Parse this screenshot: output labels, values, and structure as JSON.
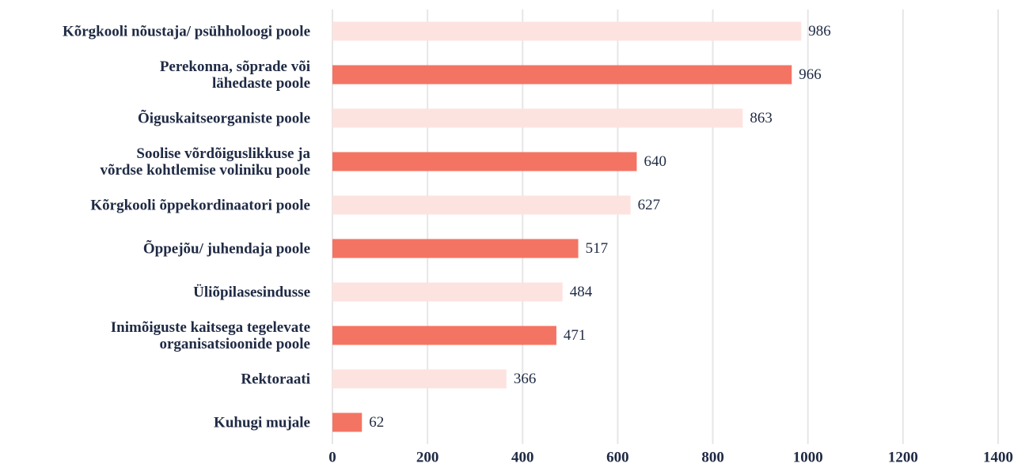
{
  "chart_data": {
    "type": "hbar",
    "categories": [
      "Kõrgkooli nõustaja/ psühholoogi poole",
      "Perekonna, sõprade või\nlähedaste poole",
      "Õiguskaitseorganiste poole",
      "Soolise võrdõiguslikkuse ja\nvõrdse kohtlemise voliniku poole",
      "Kõrgkooli õppekordinaatori poole",
      "Õppejõu/ juhendaja poole",
      "Üliõpilasesindusse",
      "Inimõiguste kaitsega tegelevate\norganisatsioonide poole",
      "Rektoraati",
      "Kuhugi mujale"
    ],
    "values": [
      986,
      966,
      863,
      640,
      627,
      517,
      484,
      471,
      366,
      62
    ],
    "colors": [
      "#fde3df",
      "#f47463",
      "#fde3df",
      "#f47463",
      "#fde3df",
      "#f47463",
      "#fde3df",
      "#f47463",
      "#fde3df",
      "#f47463"
    ],
    "xlim": [
      0,
      1400
    ],
    "xticks": [
      0,
      200,
      400,
      600,
      800,
      1000,
      1200,
      1400
    ],
    "grid": true
  }
}
